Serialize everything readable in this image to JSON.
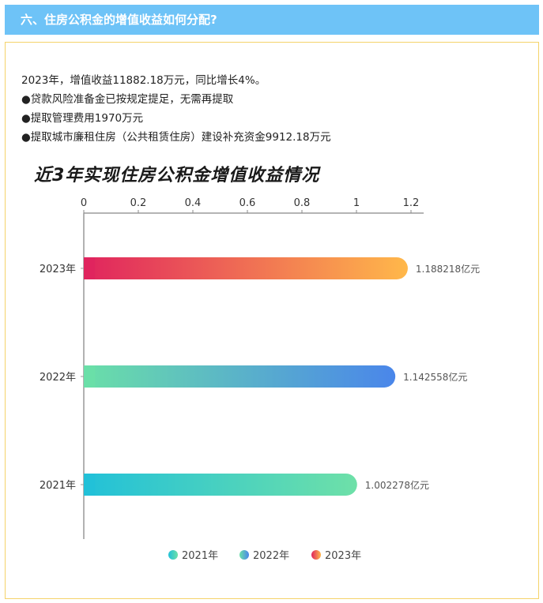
{
  "header": {
    "title": "六、住房公积金的增值收益如何分配?"
  },
  "summary": {
    "lines": [
      "2023年，增值收益11882.18万元，同比增长4%。",
      "●贷款风险准备金已按规定提足，无需再提取",
      "●提取管理费用1970万元",
      "●提取城市廉租住房（公共租赁住房）建设补充资金9912.18万元"
    ]
  },
  "chart_data": {
    "type": "bar",
    "orientation": "horizontal",
    "title": "近3年实现住房公积金增值收益情况",
    "categories": [
      "2023年",
      "2022年",
      "2021年"
    ],
    "values": [
      1.188218,
      1.142558,
      1.002278
    ],
    "data_labels": [
      "1.188218亿元",
      "1.142558亿元",
      "1.002278亿元"
    ],
    "xlim": [
      0,
      1.2
    ],
    "xticks": [
      "0",
      "0.2",
      "0.4",
      "0.6",
      "0.8",
      "1",
      "1.2"
    ],
    "tick_values": [
      0,
      0.2,
      0.4,
      0.6,
      0.8,
      1,
      1.2
    ],
    "axis_position": "top",
    "grid": false,
    "legend_placement": "bottom",
    "legend": [
      "2021年",
      "2022年",
      "2023年"
    ],
    "colors": {
      "2023年": [
        "#e0245e",
        "#ffb84a"
      ],
      "2022年": [
        "#6adfa8",
        "#4a86ea"
      ],
      "2021年": [
        "#22c1d8",
        "#6ee0a8"
      ]
    }
  }
}
